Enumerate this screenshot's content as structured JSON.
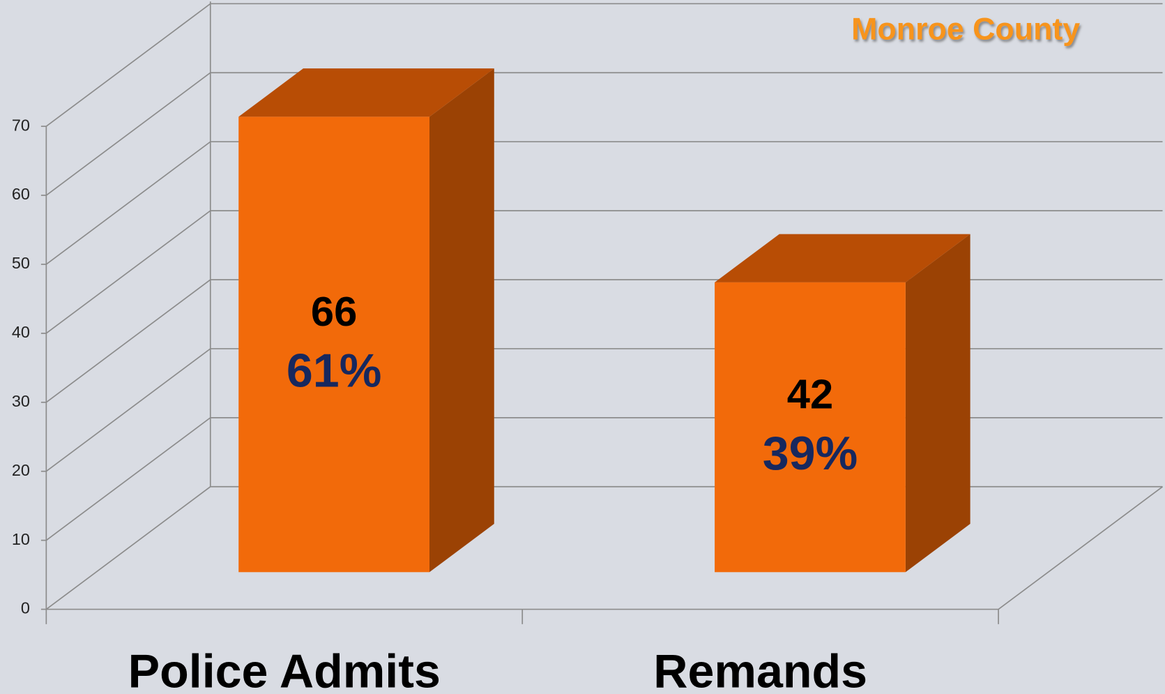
{
  "chart_data": {
    "type": "bar3d",
    "title": "Monroe County",
    "categories": [
      "Police Admits",
      "Remands"
    ],
    "values": [
      66,
      42
    ],
    "share_labels": [
      "61%",
      "39%"
    ],
    "color": "#f26a0a",
    "ylim": [
      0,
      70
    ],
    "yticks": [
      0,
      10,
      20,
      30,
      40,
      50,
      60,
      70
    ],
    "grid": true
  }
}
